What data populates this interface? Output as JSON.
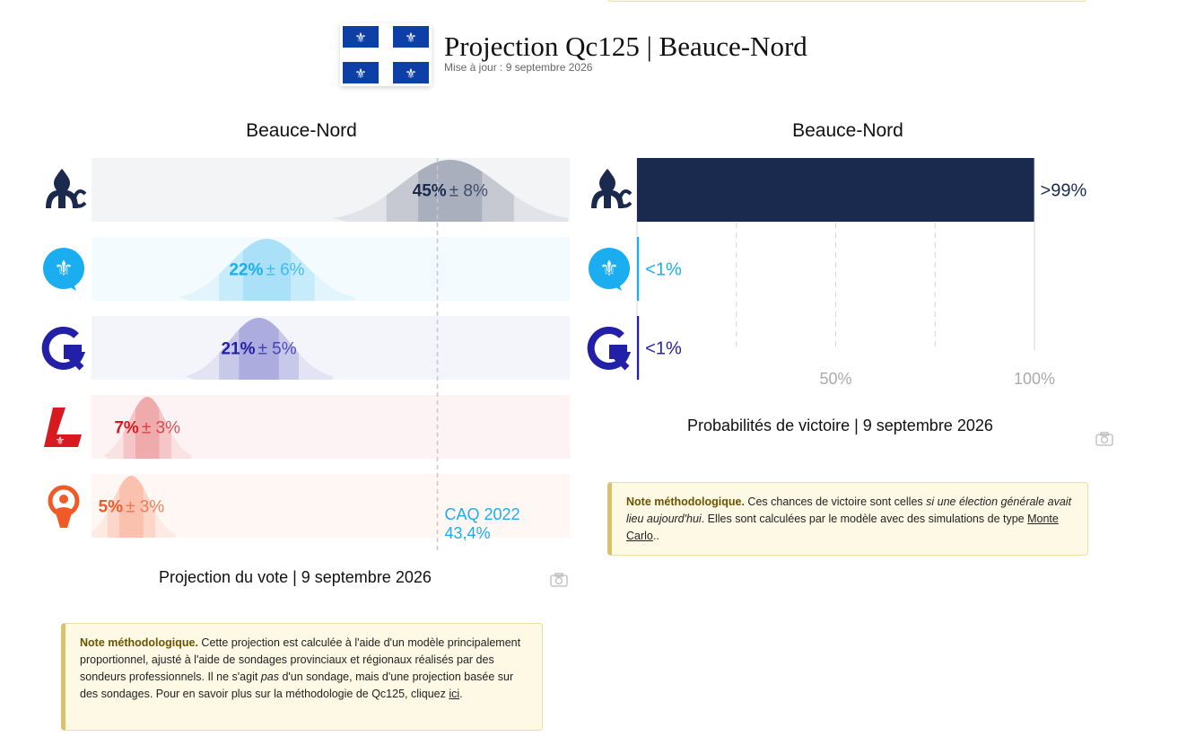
{
  "header": {
    "title": "Projection Qc125 | Beauce-Nord",
    "updated": "Mise à jour : 9 septembre 2026"
  },
  "vote_panel": {
    "title": "Beauce-Nord",
    "caption": "Projection du vote | 9 septembre 2026",
    "reference_label_1": "CAQ 2022",
    "reference_label_2": "43,4%"
  },
  "win_panel": {
    "title": "Beauce-Nord",
    "caption": "Probabilités de victoire | 9 septembre 2026"
  },
  "parties": [
    {
      "logo": "caq-logo",
      "color": "#1a2a4f",
      "color2": "#1a2a4f"
    },
    {
      "logo": "pq-logo",
      "color": "#1aaef0",
      "color2": "#1aaef0"
    },
    {
      "logo": "pcq-logo",
      "color": "#2220a8",
      "color2": "#2220a8"
    },
    {
      "logo": "plq-logo",
      "color": "#d71920",
      "color2": "#d71920"
    },
    {
      "logo": "qs-logo",
      "color": "#f05a28",
      "color2": "#f05a28"
    }
  ],
  "chart_data": [
    {
      "type": "bar",
      "title": "Beauce-Nord",
      "caption": "Projection du vote | 9 septembre 2026",
      "categories": [
        "CAQ",
        "PQ",
        "PCQ",
        "PLQ",
        "QS"
      ],
      "values": [
        45,
        22,
        21,
        7,
        5
      ],
      "margins": [
        8,
        6,
        5,
        3,
        3
      ],
      "value_labels": [
        "45%",
        "22%",
        "21%",
        "7%",
        "5%"
      ],
      "margin_labels": [
        "± 8%",
        "± 6%",
        "± 5%",
        "± 3%",
        "± 3%"
      ],
      "reference_line": {
        "label": "CAQ 2022",
        "value": 43.4,
        "value_label": "43,4%"
      },
      "xlim": [
        0,
        60
      ]
    },
    {
      "type": "bar",
      "title": "Beauce-Nord",
      "caption": "Probabilités de victoire | 9 septembre 2026",
      "categories": [
        "CAQ",
        "PQ",
        "PCQ"
      ],
      "values": [
        99.9,
        0.5,
        0.5
      ],
      "value_labels": [
        ">99%",
        "<1%",
        "<1%"
      ],
      "xticks": [
        50,
        100
      ],
      "xtick_labels": [
        "50%",
        "100%"
      ],
      "xlim": [
        0,
        100
      ],
      "grid": true
    }
  ],
  "notes": {
    "vote": {
      "lead": "Note méthodologique.",
      "text_1": " Cette projection est calculée à l'aide d'un modèle principalement proportionnel, ajusté à l'aide de sondages provinciaux et régionaux réalisés par des sondeurs professionnels. Il ne s'agit ",
      "text_em": "pas",
      "text_2": " d'un sondage, mais d'une projection basée sur des sondages. Pour en savoir plus sur la méthodologie de Qc125, cliquez ",
      "link": "ici",
      "text_3": "."
    },
    "win": {
      "lead": "Note méthodologique.",
      "text_1": " Ces chances de victoire sont celles ",
      "text_em": "si une élection générale avait lieu aujourd'hui",
      "text_2": ". Elles sont calculées par le modèle avec des simulations de type ",
      "link": "Monte Carlo",
      "text_3": ".."
    }
  }
}
